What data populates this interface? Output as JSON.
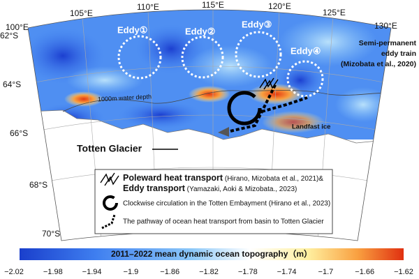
{
  "map": {
    "longitude_labels": [
      "100°E",
      "105°E",
      "110°E",
      "115°E",
      "120°E",
      "125°E",
      "130°E"
    ],
    "latitude_labels": [
      "62°S",
      "64°S",
      "66°S",
      "68°S",
      "70°S"
    ],
    "eddies": [
      "Eddy①",
      "Eddy②",
      "Eddy③",
      "Eddy④"
    ],
    "eddy_train_note": [
      "Semi-permanent",
      "eddy train",
      "(Mizobata et al., 2020)"
    ],
    "depth_label": "1000m water depth",
    "ice_label": "Landfast ice",
    "glacier_label": "Totten Glacier"
  },
  "legend": {
    "items": [
      {
        "bold": "Poleward heat transport",
        "text": " (Hirano, Mizobata et al., 2021)&"
      },
      {
        "bold": "Eddy transport",
        "text": " (Yamazaki, Aoki & Mizobata., 2023)"
      },
      {
        "text": "Clockwise circulation in the Totten Embayment (Hirano et al., 2023)"
      },
      {
        "text": "The pathway of ocean heat transport from basin to Totten Glacier"
      }
    ]
  },
  "colorbar": {
    "title": "2011–2022 mean dynamic ocean topography（m）",
    "ticks": [
      "−2.02",
      "−1.98",
      "−1.94",
      "−1.9",
      "−1.86",
      "−1.82",
      "−1.78",
      "−1.74",
      "−1.7",
      "−1.66",
      "−1.62"
    ]
  }
}
